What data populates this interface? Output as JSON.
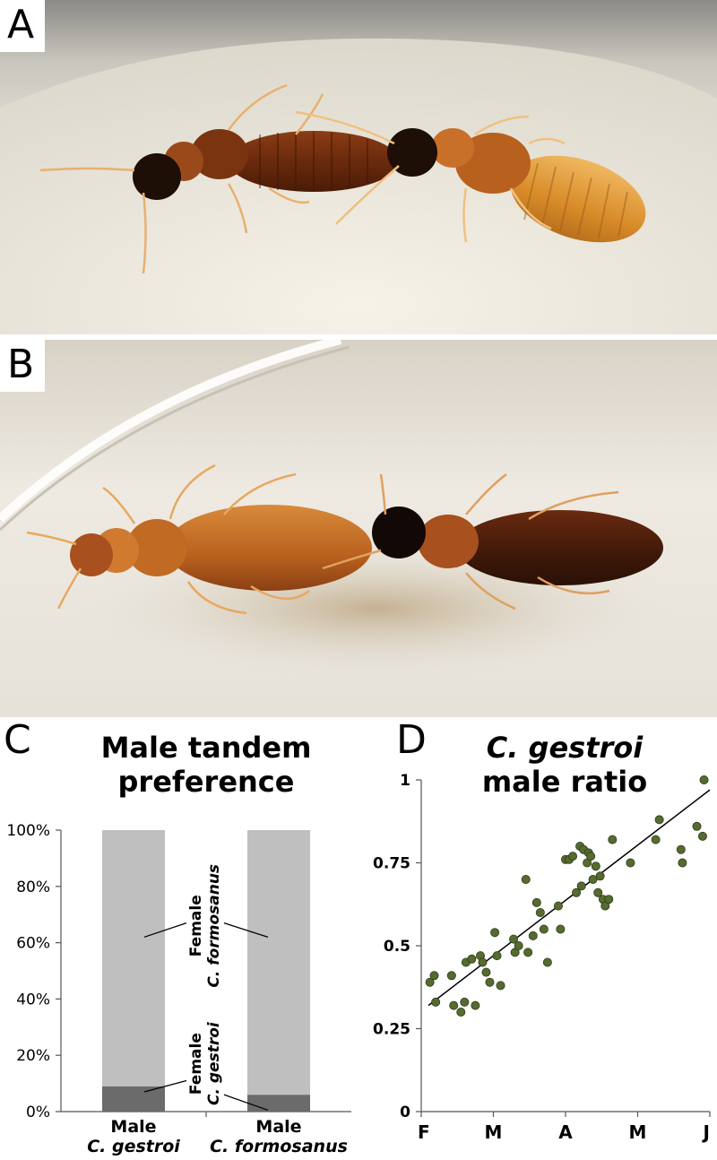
{
  "panels": {
    "a": {
      "letter": "A"
    },
    "b": {
      "letter": "B"
    },
    "c": {
      "letter": "C"
    },
    "d": {
      "letter": "D"
    }
  },
  "colors": {
    "bar_female_formosanus": "#bfbfbf",
    "bar_female_gestroi": "#6b6b6b",
    "scatter_point": "#556b2f",
    "background": "#ffffff"
  },
  "chart_data": [
    {
      "type": "bar",
      "stacked": true,
      "title_line1": "Male tandem",
      "title_line2": "preference",
      "categories": [
        {
          "line1": "Male",
          "line2": "C. gestroi"
        },
        {
          "line1": "Male",
          "line2": "C. formosanus"
        }
      ],
      "series": [
        {
          "name_line1": "Female",
          "name_line2": "C. gestroi",
          "values": [
            9,
            6
          ]
        },
        {
          "name_line1": "Female",
          "name_line2": "C. formosanus",
          "values": [
            91,
            94
          ]
        }
      ],
      "y_ticks": [
        "0%",
        "20%",
        "40%",
        "60%",
        "80%",
        "100%"
      ],
      "ylim": [
        0,
        100
      ]
    },
    {
      "type": "scatter",
      "title_line1": "C. gestroi",
      "title_line2": "male ratio",
      "x_ticks": [
        "F",
        "M",
        "A",
        "M",
        "J"
      ],
      "y_ticks": [
        "0",
        "0.25",
        "0.5",
        "0.75",
        "1"
      ],
      "xlim": [
        0,
        4
      ],
      "ylim": [
        0,
        1
      ],
      "trend_line": [
        [
          0.1,
          0.32
        ],
        [
          4.0,
          0.97
        ]
      ],
      "points": [
        [
          0.12,
          0.39
        ],
        [
          0.18,
          0.41
        ],
        [
          0.2,
          0.33
        ],
        [
          0.42,
          0.41
        ],
        [
          0.45,
          0.32
        ],
        [
          0.55,
          0.3
        ],
        [
          0.6,
          0.33
        ],
        [
          0.62,
          0.45
        ],
        [
          0.7,
          0.46
        ],
        [
          0.75,
          0.32
        ],
        [
          0.82,
          0.47
        ],
        [
          0.85,
          0.45
        ],
        [
          0.9,
          0.42
        ],
        [
          0.95,
          0.39
        ],
        [
          1.02,
          0.54
        ],
        [
          1.05,
          0.47
        ],
        [
          1.1,
          0.38
        ],
        [
          1.28,
          0.52
        ],
        [
          1.3,
          0.48
        ],
        [
          1.35,
          0.5
        ],
        [
          1.45,
          0.7
        ],
        [
          1.48,
          0.48
        ],
        [
          1.55,
          0.53
        ],
        [
          1.6,
          0.63
        ],
        [
          1.65,
          0.6
        ],
        [
          1.7,
          0.55
        ],
        [
          1.75,
          0.45
        ],
        [
          1.9,
          0.62
        ],
        [
          1.93,
          0.55
        ],
        [
          2.0,
          0.76
        ],
        [
          2.05,
          0.76
        ],
        [
          2.1,
          0.77
        ],
        [
          2.15,
          0.66
        ],
        [
          2.2,
          0.8
        ],
        [
          2.22,
          0.68
        ],
        [
          2.25,
          0.79
        ],
        [
          2.3,
          0.75
        ],
        [
          2.32,
          0.78
        ],
        [
          2.35,
          0.77
        ],
        [
          2.38,
          0.7
        ],
        [
          2.42,
          0.74
        ],
        [
          2.45,
          0.66
        ],
        [
          2.48,
          0.71
        ],
        [
          2.52,
          0.64
        ],
        [
          2.55,
          0.62
        ],
        [
          2.6,
          0.64
        ],
        [
          2.65,
          0.82
        ],
        [
          2.9,
          0.75
        ],
        [
          3.25,
          0.82
        ],
        [
          3.3,
          0.88
        ],
        [
          3.6,
          0.79
        ],
        [
          3.62,
          0.75
        ],
        [
          3.82,
          0.86
        ],
        [
          3.9,
          0.83
        ],
        [
          3.92,
          1.0
        ]
      ]
    }
  ]
}
